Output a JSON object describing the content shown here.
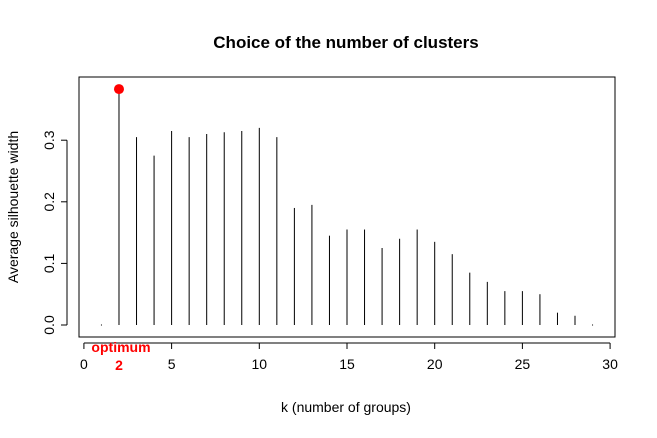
{
  "chart_data": {
    "type": "bar",
    "title": "Choice of the number of clusters",
    "xlabel": "k (number of groups)",
    "ylabel": "Average silhouette width",
    "xlim": [
      0,
      30
    ],
    "ylim": [
      0,
      0.4
    ],
    "x_ticks": [
      "0",
      "5",
      "10",
      "15",
      "20",
      "25",
      "30"
    ],
    "y_ticks": [
      "0.0",
      "0.1",
      "0.2",
      "0.3"
    ],
    "grid": false,
    "x": [
      1,
      2,
      3,
      4,
      5,
      6,
      7,
      8,
      9,
      10,
      11,
      12,
      13,
      14,
      15,
      16,
      17,
      18,
      19,
      20,
      21,
      22,
      23,
      24,
      25,
      26,
      27,
      28,
      29
    ],
    "values": [
      0.0,
      0.383,
      0.305,
      0.275,
      0.315,
      0.305,
      0.31,
      0.313,
      0.315,
      0.32,
      0.305,
      0.19,
      0.195,
      0.145,
      0.155,
      0.155,
      0.125,
      0.14,
      0.155,
      0.135,
      0.115,
      0.085,
      0.07,
      0.055,
      0.055,
      0.05,
      0.02,
      0.015,
      0.0
    ],
    "annotation": {
      "label": "optimum",
      "k": 2,
      "k_label": "2",
      "color": "#ff0000"
    },
    "colors": {
      "bar": "#000000",
      "highlight": "#ff0000"
    }
  }
}
